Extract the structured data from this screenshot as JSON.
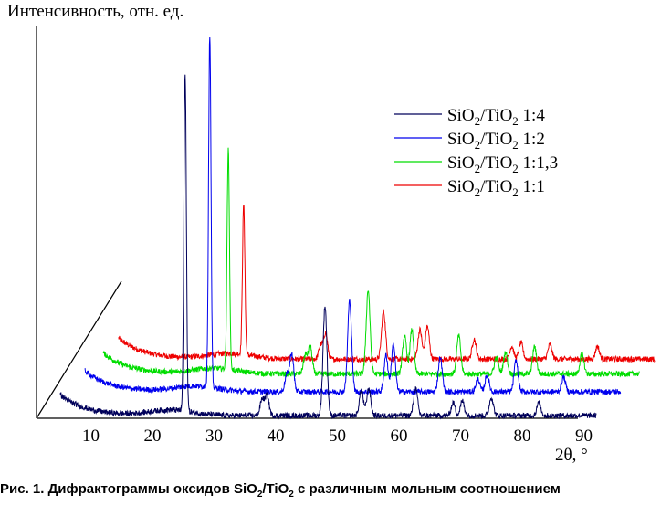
{
  "chart_data": {
    "type": "line",
    "ylabel": "Интенсивность, отн. ед.",
    "xlabel": "2θ, °",
    "xticks": [
      "10",
      "20",
      "30",
      "40",
      "50",
      "60",
      "70",
      "80",
      "90"
    ],
    "xlim": [
      5,
      92
    ],
    "caption": {
      "prefix": "Рис. 1. Дифрактограммы оксидов SiO",
      "sub1": "2",
      "mid": "/TiO",
      "sub2": "2",
      "suffix": " с различным мольным соотношением"
    },
    "series": [
      {
        "name": "SiO2/TiO2 1:4",
        "label": {
          "a": "SiO",
          "s1": "2",
          "b": "/TiO",
          "s2": "2",
          "c": " 1:4"
        },
        "color": "#00005a",
        "baseline_offset_deg": 0,
        "peaks": [
          [
            25.3,
            370
          ],
          [
            37.8,
            18
          ],
          [
            38.6,
            22
          ],
          [
            48.0,
            120
          ],
          [
            53.9,
            28
          ],
          [
            55.1,
            30
          ],
          [
            62.7,
            30
          ],
          [
            68.8,
            14
          ],
          [
            70.3,
            16
          ],
          [
            75.0,
            20
          ],
          [
            82.7,
            14
          ]
        ]
      },
      {
        "name": "SiO2/TiO2 1:2",
        "label": {
          "a": "SiO",
          "s1": "2",
          "b": "/TiO",
          "s2": "2",
          "c": " 1:2"
        },
        "color": "#0000ee",
        "baseline_offset_deg": 4,
        "peaks": [
          [
            25.3,
            385
          ],
          [
            37.8,
            18
          ],
          [
            38.6,
            42
          ],
          [
            48.0,
            100
          ],
          [
            53.9,
            40
          ],
          [
            55.1,
            52
          ],
          [
            62.7,
            38
          ],
          [
            68.8,
            14
          ],
          [
            70.3,
            18
          ],
          [
            75.0,
            34
          ],
          [
            82.7,
            16
          ]
        ]
      },
      {
        "name": "SiO2/TiO2 1:1,3",
        "label": {
          "a": "SiO",
          "s1": "2",
          "b": "/TiO",
          "s2": "2",
          "c": " 1:1,3"
        },
        "color": "#00dd00",
        "baseline_offset_deg": 7,
        "peaks": [
          [
            25.3,
            240
          ],
          [
            37.8,
            20
          ],
          [
            38.6,
            30
          ],
          [
            48.0,
            92
          ],
          [
            53.9,
            42
          ],
          [
            55.1,
            48
          ],
          [
            62.7,
            42
          ],
          [
            68.8,
            18
          ],
          [
            70.3,
            24
          ],
          [
            75.0,
            30
          ],
          [
            82.7,
            22
          ]
        ]
      },
      {
        "name": "SiO2/TiO2 1:1",
        "label": {
          "a": "SiO",
          "s1": "2",
          "b": "/TiO",
          "s2": "2",
          "c": " 1:1"
        },
        "color": "#ee0000",
        "baseline_offset_deg": 9.5,
        "peaks": [
          [
            25.3,
            165
          ],
          [
            37.8,
            15
          ],
          [
            38.6,
            28
          ],
          [
            48.0,
            52
          ],
          [
            53.9,
            32
          ],
          [
            55.1,
            36
          ],
          [
            62.7,
            22
          ],
          [
            68.8,
            14
          ],
          [
            70.3,
            18
          ],
          [
            75.0,
            16
          ],
          [
            82.7,
            14
          ]
        ]
      }
    ]
  }
}
